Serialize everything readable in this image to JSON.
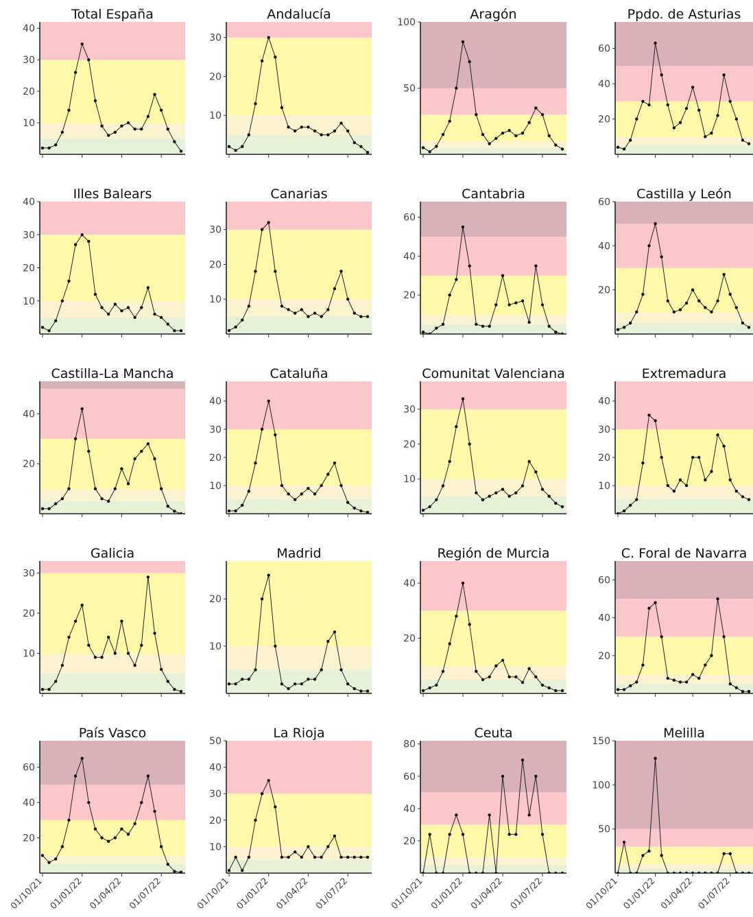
{
  "chart_data": [
    {
      "title": "Total España",
      "type": "line",
      "ylim": [
        0,
        42
      ],
      "yticks": [
        10,
        20,
        30,
        40
      ],
      "bands": [
        5,
        10,
        30,
        50
      ],
      "x": [
        "01/10/21",
        "15/10/21",
        "01/11/21",
        "15/11/21",
        "01/12/21",
        "15/12/21",
        "01/01/22",
        "15/01/22",
        "01/02/22",
        "15/02/22",
        "01/03/22",
        "15/03/22",
        "01/04/22",
        "15/04/22",
        "01/05/22",
        "15/05/22",
        "01/06/22",
        "15/06/22",
        "01/07/22",
        "15/07/22",
        "01/08/22",
        "15/08/22"
      ],
      "values": [
        2,
        2,
        3,
        7,
        14,
        26,
        35,
        30,
        17,
        9,
        6,
        7,
        9,
        10,
        8,
        8,
        12,
        19,
        14,
        8,
        4,
        1
      ]
    },
    {
      "title": "Andalucía",
      "type": "line",
      "ylim": [
        0,
        34
      ],
      "yticks": [
        10,
        20,
        30
      ],
      "bands": [
        5,
        10,
        30,
        50
      ],
      "values": [
        2,
        1,
        2,
        5,
        13,
        24,
        30,
        25,
        12,
        7,
        6,
        7,
        7,
        6,
        5,
        5,
        6,
        8,
        6,
        3,
        2,
        0.5
      ]
    },
    {
      "title": "Aragón",
      "type": "line",
      "ylim": [
        0,
        100
      ],
      "yticks": [
        50,
        100
      ],
      "bands": [
        5,
        10,
        30,
        50
      ],
      "values": [
        5,
        2,
        6,
        15,
        25,
        50,
        85,
        70,
        30,
        15,
        8,
        12,
        16,
        18,
        14,
        16,
        24,
        35,
        30,
        14,
        7,
        4
      ]
    },
    {
      "title": "Ppdo. de Asturias",
      "type": "line",
      "ylim": [
        0,
        75
      ],
      "yticks": [
        20,
        40,
        60
      ],
      "bands": [
        5,
        10,
        30,
        50
      ],
      "values": [
        4,
        3,
        8,
        20,
        30,
        28,
        63,
        45,
        28,
        15,
        18,
        26,
        38,
        25,
        10,
        12,
        22,
        45,
        30,
        20,
        8,
        6
      ]
    },
    {
      "title": "Illes Balears",
      "type": "line",
      "ylim": [
        0,
        40
      ],
      "yticks": [
        10,
        20,
        30,
        40
      ],
      "bands": [
        5,
        10,
        30,
        50
      ],
      "values": [
        2,
        1,
        4,
        10,
        16,
        27,
        30,
        28,
        12,
        8,
        6,
        9,
        7,
        8,
        5,
        8,
        14,
        6,
        5,
        3,
        1,
        1
      ]
    },
    {
      "title": "Canarias",
      "type": "line",
      "ylim": [
        0,
        38
      ],
      "yticks": [
        10,
        20,
        30
      ],
      "bands": [
        5,
        10,
        30,
        50
      ],
      "values": [
        1,
        2,
        4,
        8,
        18,
        30,
        32,
        18,
        8,
        7,
        6,
        7,
        5,
        6,
        5,
        7,
        13,
        18,
        10,
        6,
        5,
        5
      ]
    },
    {
      "title": "Cantabria",
      "type": "line",
      "ylim": [
        0,
        68
      ],
      "yticks": [
        20,
        40,
        60
      ],
      "bands": [
        5,
        10,
        30,
        50
      ],
      "values": [
        1,
        0,
        3,
        5,
        20,
        28,
        55,
        35,
        5,
        4,
        4,
        15,
        30,
        15,
        16,
        17,
        6,
        35,
        15,
        4,
        1,
        0
      ]
    },
    {
      "title": "Castilla y León",
      "type": "line",
      "ylim": [
        0,
        60
      ],
      "yticks": [
        20,
        40,
        60
      ],
      "bands": [
        5,
        10,
        30,
        50
      ],
      "values": [
        2,
        3,
        5,
        10,
        18,
        40,
        50,
        35,
        15,
        10,
        11,
        14,
        20,
        15,
        12,
        10,
        15,
        27,
        18,
        12,
        5,
        3
      ]
    },
    {
      "title": "Castilla-La Mancha",
      "type": "line",
      "ylim": [
        0,
        53
      ],
      "yticks": [
        20,
        40
      ],
      "bands": [
        5,
        10,
        30,
        50
      ],
      "values": [
        2,
        2,
        4,
        6,
        10,
        30,
        42,
        25,
        10,
        6,
        5,
        10,
        18,
        12,
        22,
        25,
        28,
        22,
        10,
        3,
        1,
        0
      ]
    },
    {
      "title": "Cataluña",
      "type": "line",
      "ylim": [
        0,
        47
      ],
      "yticks": [
        10,
        20,
        30,
        40
      ],
      "bands": [
        5,
        10,
        30,
        50
      ],
      "values": [
        1,
        1,
        3,
        8,
        18,
        30,
        40,
        28,
        10,
        7,
        5,
        7,
        9,
        7,
        10,
        14,
        18,
        10,
        4,
        2,
        1,
        0.5
      ]
    },
    {
      "title": "Comunitat Valenciana",
      "type": "line",
      "ylim": [
        0,
        38
      ],
      "yticks": [
        10,
        20,
        30
      ],
      "bands": [
        5,
        10,
        30,
        50
      ],
      "values": [
        1,
        2,
        4,
        8,
        15,
        25,
        33,
        20,
        6,
        4,
        5,
        6,
        7,
        5,
        6,
        8,
        15,
        12,
        7,
        5,
        3,
        2
      ]
    },
    {
      "title": "Extremadura",
      "type": "line",
      "ylim": [
        0,
        47
      ],
      "yticks": [
        10,
        20,
        30,
        40
      ],
      "bands": [
        5,
        10,
        30,
        50
      ],
      "values": [
        0,
        1,
        3,
        5,
        18,
        35,
        33,
        20,
        10,
        8,
        12,
        10,
        20,
        20,
        12,
        15,
        28,
        24,
        12,
        8,
        6,
        5
      ]
    },
    {
      "title": "Galicia",
      "type": "line",
      "ylim": [
        0,
        33
      ],
      "yticks": [
        10,
        20,
        30
      ],
      "bands": [
        5,
        10,
        30,
        50
      ],
      "values": [
        1,
        1,
        3,
        7,
        14,
        18,
        22,
        12,
        9,
        9,
        14,
        10,
        18,
        10,
        7,
        12,
        29,
        15,
        6,
        3,
        1,
        0.5
      ]
    },
    {
      "title": "Madrid",
      "type": "line",
      "ylim": [
        0,
        28
      ],
      "yticks": [
        10,
        20
      ],
      "bands": [
        5,
        10,
        30,
        50
      ],
      "values": [
        2,
        2,
        3,
        3,
        5,
        20,
        25,
        10,
        2,
        1,
        2,
        2,
        3,
        3,
        5,
        11,
        13,
        5,
        2,
        1,
        0.5,
        0.5
      ]
    },
    {
      "title": "Región de Murcia",
      "type": "line",
      "ylim": [
        0,
        48
      ],
      "yticks": [
        20,
        40
      ],
      "bands": [
        5,
        10,
        30,
        50
      ],
      "values": [
        1,
        2,
        3,
        8,
        18,
        28,
        40,
        25,
        8,
        5,
        6,
        10,
        12,
        6,
        6,
        4,
        9,
        6,
        3,
        2,
        1,
        1
      ]
    },
    {
      "title": "C. Foral de Navarra",
      "type": "line",
      "ylim": [
        0,
        70
      ],
      "yticks": [
        20,
        40,
        60
      ],
      "bands": [
        5,
        10,
        30,
        50
      ],
      "values": [
        2,
        2,
        4,
        6,
        15,
        45,
        48,
        30,
        8,
        7,
        6,
        6,
        10,
        8,
        15,
        20,
        50,
        30,
        5,
        3,
        1,
        1
      ]
    },
    {
      "title": "País Vasco",
      "type": "line",
      "ylim": [
        0,
        75
      ],
      "yticks": [
        20,
        40,
        60
      ],
      "bands": [
        5,
        10,
        30,
        50
      ],
      "values": [
        10,
        6,
        8,
        15,
        30,
        55,
        65,
        40,
        25,
        20,
        18,
        20,
        25,
        22,
        28,
        40,
        55,
        35,
        15,
        5,
        1,
        0.5
      ]
    },
    {
      "title": "La Rioja",
      "type": "line",
      "ylim": [
        0,
        50
      ],
      "yticks": [
        10,
        20,
        30,
        40,
        50
      ],
      "bands": [
        5,
        10,
        30,
        50
      ],
      "values": [
        1,
        6,
        1,
        6,
        20,
        30,
        35,
        25,
        6,
        6,
        8,
        6,
        10,
        6,
        6,
        10,
        14,
        6,
        6,
        6,
        6,
        6
      ]
    },
    {
      "title": "Ceuta",
      "type": "line",
      "ylim": [
        0,
        82
      ],
      "yticks": [
        20,
        40,
        60,
        80
      ],
      "bands": [
        5,
        10,
        30,
        50
      ],
      "values": [
        0,
        24,
        0,
        0,
        24,
        36,
        24,
        0,
        0,
        0,
        36,
        0,
        60,
        24,
        24,
        70,
        36,
        60,
        24,
        0,
        0,
        0
      ]
    },
    {
      "title": "Melilla",
      "type": "line",
      "ylim": [
        0,
        150
      ],
      "yticks": [
        50,
        100,
        150
      ],
      "bands": [
        5,
        10,
        30,
        50
      ],
      "values": [
        0,
        35,
        0,
        0,
        20,
        25,
        130,
        20,
        0,
        0,
        0,
        0,
        0,
        0,
        0,
        0,
        0,
        22,
        22,
        0,
        0,
        0
      ]
    }
  ],
  "x_tick_labels": [
    "01/10/21",
    "01/01/22",
    "01/04/22",
    "01/07/22"
  ],
  "band_colors": [
    "#e6f2d8",
    "#fbf3d0",
    "#fdf9a8",
    "#fbc7c9",
    "#d8b1b9"
  ]
}
